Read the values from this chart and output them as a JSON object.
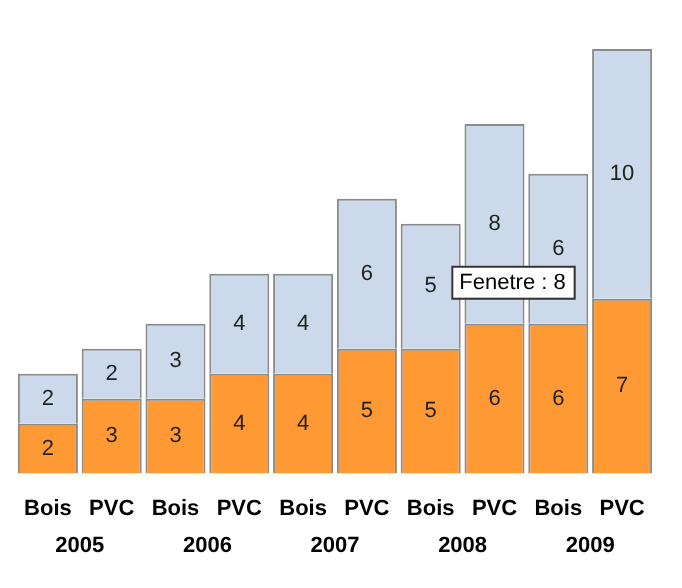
{
  "chart_data": {
    "type": "bar",
    "stacked": true,
    "data_labels": true,
    "legend": false,
    "grid": false,
    "categories": [
      "Bois",
      "PVC",
      "Bois",
      "PVC",
      "Bois",
      "PVC",
      "Bois",
      "PVC",
      "Bois",
      "PVC"
    ],
    "series": [
      {
        "color": "#ff9933",
        "values": [
          2,
          3,
          3,
          4,
          4,
          5,
          5,
          6,
          6,
          7
        ]
      },
      {
        "color": "#ccd9ea",
        "values": [
          2,
          2,
          3,
          4,
          4,
          6,
          5,
          8,
          6,
          10
        ]
      }
    ],
    "annotations": [
      "2005",
      "2006",
      "2007",
      "2008",
      "2009",
      "Fenetre : 8"
    ]
  }
}
